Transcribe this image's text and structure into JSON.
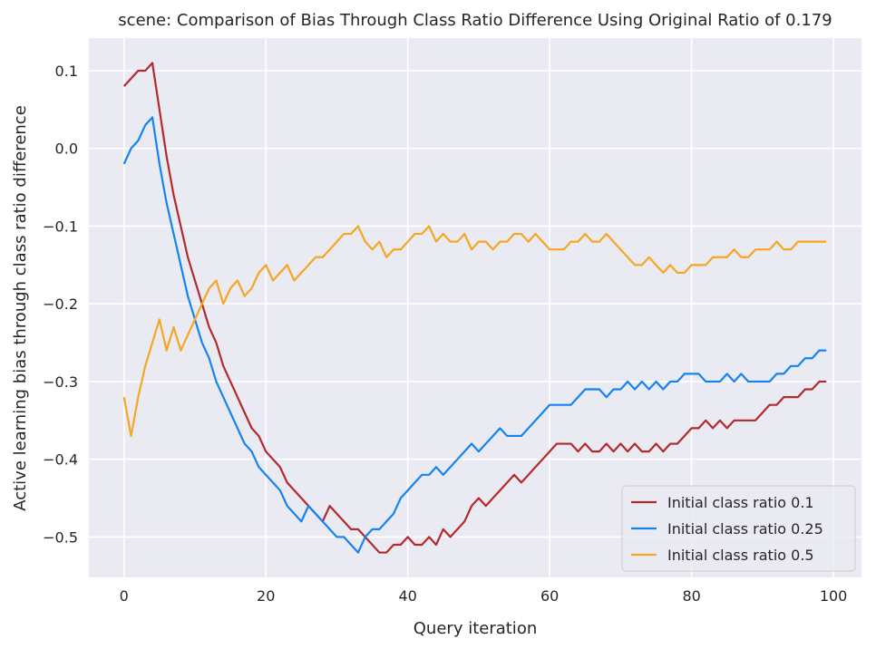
{
  "chart_data": {
    "type": "line",
    "title": "scene: Comparison of Bias Through Class Ratio Difference Using Original Ratio of 0.179",
    "xlabel": "Query iteration",
    "ylabel": "Active learning bias through class ratio difference",
    "xlim": [
      -4.95,
      103.95
    ],
    "ylim": [
      -0.552,
      0.142
    ],
    "xticks": [
      0,
      20,
      40,
      60,
      80,
      100
    ],
    "xtick_labels": [
      "0",
      "20",
      "40",
      "60",
      "80",
      "100"
    ],
    "yticks": [
      0.1,
      0.0,
      -0.1,
      -0.2,
      -0.3,
      -0.4,
      -0.5
    ],
    "ytick_labels": [
      "0.1",
      "0.0",
      "−0.1",
      "−0.2",
      "−0.3",
      "−0.4",
      "−0.5"
    ],
    "grid": true,
    "background": "#eaeaf2",
    "legend_position": "lower-right",
    "series": [
      {
        "name": "Initial class ratio 0.1",
        "color": "#b22a2e",
        "values": [
          0.08,
          0.09,
          0.1,
          0.1,
          0.11,
          0.05,
          -0.01,
          -0.06,
          -0.1,
          -0.14,
          -0.17,
          -0.2,
          -0.23,
          -0.25,
          -0.28,
          -0.3,
          -0.32,
          -0.34,
          -0.36,
          -0.37,
          -0.39,
          -0.4,
          -0.41,
          -0.43,
          -0.44,
          -0.45,
          -0.46,
          -0.47,
          -0.48,
          -0.46,
          -0.47,
          -0.48,
          -0.49,
          -0.49,
          -0.5,
          -0.51,
          -0.52,
          -0.52,
          -0.51,
          -0.51,
          -0.5,
          -0.51,
          -0.51,
          -0.5,
          -0.51,
          -0.49,
          -0.5,
          -0.49,
          -0.48,
          -0.46,
          -0.45,
          -0.46,
          -0.45,
          -0.44,
          -0.43,
          -0.42,
          -0.43,
          -0.42,
          -0.41,
          -0.4,
          -0.39,
          -0.38,
          -0.38,
          -0.38,
          -0.39,
          -0.38,
          -0.39,
          -0.39,
          -0.38,
          -0.39,
          -0.38,
          -0.39,
          -0.38,
          -0.39,
          -0.39,
          -0.38,
          -0.39,
          -0.38,
          -0.38,
          -0.37,
          -0.36,
          -0.36,
          -0.35,
          -0.36,
          -0.35,
          -0.36,
          -0.35,
          -0.35,
          -0.35,
          -0.35,
          -0.34,
          -0.33,
          -0.33,
          -0.32,
          -0.32,
          -0.32,
          -0.31,
          -0.31,
          -0.3,
          -0.3
        ]
      },
      {
        "name": "Initial class ratio 0.25",
        "color": "#1584f0",
        "values": [
          -0.02,
          0.0,
          0.01,
          0.03,
          0.04,
          -0.02,
          -0.07,
          -0.11,
          -0.15,
          -0.19,
          -0.22,
          -0.25,
          -0.27,
          -0.3,
          -0.32,
          -0.34,
          -0.36,
          -0.38,
          -0.39,
          -0.41,
          -0.42,
          -0.43,
          -0.44,
          -0.46,
          -0.47,
          -0.48,
          -0.46,
          -0.47,
          -0.48,
          -0.49,
          -0.5,
          -0.5,
          -0.51,
          -0.52,
          -0.5,
          -0.49,
          -0.49,
          -0.48,
          -0.47,
          -0.45,
          -0.44,
          -0.43,
          -0.42,
          -0.42,
          -0.41,
          -0.42,
          -0.41,
          -0.4,
          -0.39,
          -0.38,
          -0.39,
          -0.38,
          -0.37,
          -0.36,
          -0.37,
          -0.37,
          -0.37,
          -0.36,
          -0.35,
          -0.34,
          -0.33,
          -0.33,
          -0.33,
          -0.33,
          -0.32,
          -0.31,
          -0.31,
          -0.31,
          -0.32,
          -0.31,
          -0.31,
          -0.3,
          -0.31,
          -0.3,
          -0.31,
          -0.3,
          -0.31,
          -0.3,
          -0.3,
          -0.29,
          -0.29,
          -0.29,
          -0.3,
          -0.3,
          -0.3,
          -0.29,
          -0.3,
          -0.29,
          -0.3,
          -0.3,
          -0.3,
          -0.3,
          -0.29,
          -0.29,
          -0.28,
          -0.28,
          -0.27,
          -0.27,
          -0.26,
          -0.26
        ]
      },
      {
        "name": "Initial class ratio 0.5",
        "color": "#f5a623",
        "values": [
          -0.32,
          -0.37,
          -0.32,
          -0.28,
          -0.25,
          -0.22,
          -0.26,
          -0.23,
          -0.26,
          -0.24,
          -0.22,
          -0.2,
          -0.18,
          -0.17,
          -0.2,
          -0.18,
          -0.17,
          -0.19,
          -0.18,
          -0.16,
          -0.15,
          -0.17,
          -0.16,
          -0.15,
          -0.17,
          -0.16,
          -0.15,
          -0.14,
          -0.14,
          -0.13,
          -0.12,
          -0.11,
          -0.11,
          -0.1,
          -0.12,
          -0.13,
          -0.12,
          -0.14,
          -0.13,
          -0.13,
          -0.12,
          -0.11,
          -0.11,
          -0.1,
          -0.12,
          -0.11,
          -0.12,
          -0.12,
          -0.11,
          -0.13,
          -0.12,
          -0.12,
          -0.13,
          -0.12,
          -0.12,
          -0.11,
          -0.11,
          -0.12,
          -0.11,
          -0.12,
          -0.13,
          -0.13,
          -0.13,
          -0.12,
          -0.12,
          -0.11,
          -0.12,
          -0.12,
          -0.11,
          -0.12,
          -0.13,
          -0.14,
          -0.15,
          -0.15,
          -0.14,
          -0.15,
          -0.16,
          -0.15,
          -0.16,
          -0.16,
          -0.15,
          -0.15,
          -0.15,
          -0.14,
          -0.14,
          -0.14,
          -0.13,
          -0.14,
          -0.14,
          -0.13,
          -0.13,
          -0.13,
          -0.12,
          -0.13,
          -0.13,
          -0.12,
          -0.12,
          -0.12,
          -0.12,
          -0.12
        ]
      }
    ]
  }
}
